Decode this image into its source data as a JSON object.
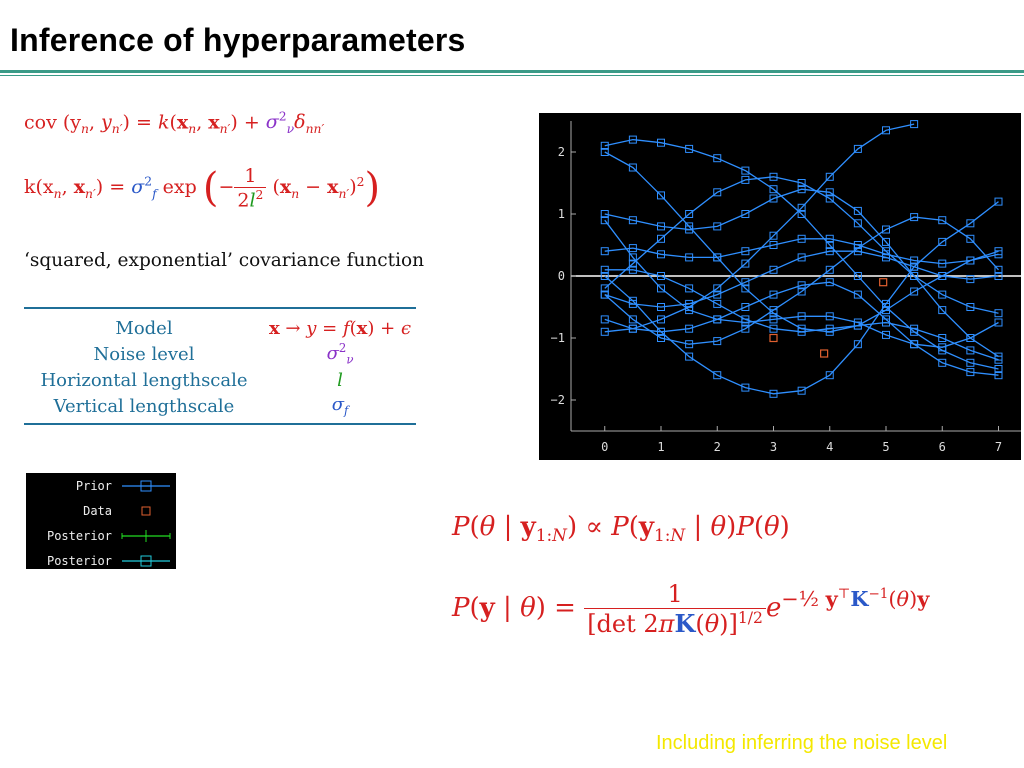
{
  "slide": {
    "title": "Inference of hyperparameters",
    "footer": "Including inferring the noise level"
  },
  "equations": {
    "cov_lhs": "cov (y",
    "k_def_prefix": "k(x",
    "caption": "‘squared, exponential’ covariance function",
    "posterior_theta": "P(θ | y1:N) ∝ P(y1:N | θ)P(θ)",
    "likelihood": "P(y | θ) = 1 / [det 2πK(θ)]^(1/2) e^(−½ yᵀK⁻¹(θ)y)"
  },
  "param_table": {
    "rows": [
      {
        "label": "Model",
        "value": "x → y = f(x) + ϵ",
        "color": "#d62020"
      },
      {
        "label": "Noise level",
        "value": "σν²",
        "color": "#8a32c8"
      },
      {
        "label": "Horizontal lengthscale",
        "value": "l",
        "color": "#1f9a1f"
      },
      {
        "label": "Vertical lengthscale",
        "value": "σf",
        "color": "#2a58c8"
      }
    ]
  },
  "legend": {
    "items": [
      {
        "label": "Prior",
        "marker": "blue-square-line"
      },
      {
        "label": "Data",
        "marker": "red-square"
      },
      {
        "label": "Posterior",
        "marker": "green-cross-line"
      },
      {
        "label": "Posterior",
        "marker": "cyan-square-line"
      }
    ]
  },
  "colors": {
    "accent_rule": "#3a9a87",
    "prior_line": "#2f8fff",
    "data_marker": "#e06030",
    "footer": "#f4e800"
  },
  "chart_data": {
    "type": "line",
    "xlim": [
      -0.6,
      7.4
    ],
    "ylim": [
      -2.5,
      2.5
    ],
    "xticks": [
      0,
      1,
      2,
      3,
      4,
      5,
      6,
      7
    ],
    "yticks": [
      -2,
      -1,
      0,
      1,
      2
    ],
    "grid": false,
    "data_points": [
      {
        "x": 3.0,
        "y": -1.0
      },
      {
        "x": 3.9,
        "y": -1.25
      },
      {
        "x": 4.95,
        "y": -0.1
      }
    ],
    "prior_samples": [
      {
        "x": [
          0,
          0.5,
          1,
          1.5,
          2,
          2.5,
          3,
          3.5,
          4,
          4.5,
          5,
          5.5,
          6,
          6.5,
          7
        ],
        "y": [
          2.1,
          2.2,
          2.15,
          2.05,
          1.9,
          1.7,
          1.4,
          1.0,
          0.5,
          0.0,
          -0.5,
          -0.9,
          -1.2,
          -1.4,
          -1.5
        ]
      },
      {
        "x": [
          0,
          0.5,
          1,
          1.5,
          2,
          2.5,
          3,
          3.5,
          4,
          4.5,
          5,
          5.5,
          6,
          6.5,
          7
        ],
        "y": [
          2.0,
          1.75,
          1.3,
          0.8,
          0.3,
          -0.2,
          -0.6,
          -0.85,
          -0.9,
          -0.8,
          -0.55,
          -0.25,
          0.0,
          0.25,
          0.4
        ]
      },
      {
        "x": [
          0,
          0.5,
          1,
          1.5,
          2,
          2.5,
          3,
          3.5,
          4,
          4.5,
          5,
          5.5,
          6,
          6.5,
          7
        ],
        "y": [
          0.0,
          -0.4,
          -0.9,
          -1.3,
          -1.6,
          -1.8,
          -1.9,
          -1.85,
          -1.6,
          -1.1,
          -0.45,
          0.15,
          0.55,
          0.85,
          1.2
        ]
      },
      {
        "x": [
          0,
          0.5,
          1,
          1.5,
          2,
          2.5,
          3,
          3.5,
          4,
          4.5,
          5,
          5.5,
          6,
          6.5,
          7
        ],
        "y": [
          -0.3,
          -0.45,
          -0.5,
          -0.45,
          -0.3,
          -0.1,
          0.1,
          0.3,
          0.4,
          0.4,
          0.3,
          0.15,
          0.0,
          -0.05,
          0.0
        ]
      },
      {
        "x": [
          0,
          0.5,
          1,
          1.5,
          2,
          2.5,
          3,
          3.5,
          4,
          4.5,
          5,
          5.5,
          6,
          6.5,
          7
        ],
        "y": [
          1.0,
          0.9,
          0.8,
          0.75,
          0.8,
          1.0,
          1.25,
          1.4,
          1.35,
          1.05,
          0.55,
          0.0,
          -0.55,
          -1.0,
          -1.3
        ]
      },
      {
        "x": [
          0,
          0.5,
          1,
          1.5,
          2,
          2.5,
          3,
          3.5,
          4,
          4.5,
          5,
          5.5,
          6,
          6.5,
          7
        ],
        "y": [
          0.9,
          0.3,
          -0.2,
          -0.55,
          -0.7,
          -0.75,
          -0.7,
          -0.65,
          -0.65,
          -0.75,
          -0.95,
          -1.1,
          -1.15,
          -1.0,
          -0.75
        ]
      },
      {
        "x": [
          0,
          0.5,
          1,
          1.5,
          2,
          2.5,
          3,
          3.5,
          4,
          4.5,
          5,
          5.5,
          6,
          6.5,
          7
        ],
        "y": [
          0.4,
          0.45,
          0.35,
          0.3,
          0.3,
          0.4,
          0.5,
          0.6,
          0.6,
          0.5,
          0.35,
          0.25,
          0.2,
          0.25,
          0.35
        ]
      },
      {
        "x": [
          0,
          0.5,
          1,
          1.5,
          2,
          2.5,
          3,
          3.5,
          4,
          4.5,
          5,
          5.5,
          6,
          6.5,
          7
        ],
        "y": [
          -0.7,
          -0.85,
          -0.9,
          -0.85,
          -0.7,
          -0.5,
          -0.3,
          -0.15,
          -0.1,
          -0.3,
          -0.7,
          -1.1,
          -1.4,
          -1.55,
          -1.6
        ]
      },
      {
        "x": [
          0,
          0.5,
          1,
          1.5,
          2,
          2.5,
          3,
          3.5,
          4,
          4.5,
          5,
          5.5,
          6,
          6.5,
          7
        ],
        "y": [
          -0.2,
          0.2,
          0.6,
          1.0,
          1.35,
          1.55,
          1.6,
          1.5,
          1.25,
          0.85,
          0.4,
          0.0,
          -0.3,
          -0.5,
          -0.6
        ]
      },
      {
        "x": [
          0,
          0.5,
          1,
          1.5,
          2,
          2.5,
          3,
          3.5,
          4,
          4.5,
          5,
          5.5,
          6,
          6.5,
          7
        ],
        "y": [
          -0.3,
          -0.7,
          -1.0,
          -1.1,
          -1.05,
          -0.85,
          -0.55,
          -0.25,
          0.1,
          0.45,
          0.75,
          0.95,
          0.9,
          0.6,
          0.1
        ]
      },
      {
        "x": [
          0,
          0.5,
          1,
          1.5,
          2,
          2.5,
          3,
          3.5,
          4,
          4.5,
          5,
          5.5,
          6,
          6.5,
          7
        ],
        "y": [
          0.1,
          0.1,
          0.0,
          -0.2,
          -0.45,
          -0.7,
          -0.85,
          -0.9,
          -0.85,
          -0.8,
          -0.75,
          -0.85,
          -1.0,
          -1.2,
          -1.35
        ]
      },
      {
        "x": [
          0,
          0.5,
          1,
          1.5,
          2,
          2.5,
          3,
          3.5,
          4,
          4.5,
          5,
          5.5
        ],
        "y": [
          -0.9,
          -0.85,
          -0.7,
          -0.5,
          -0.2,
          0.2,
          0.65,
          1.1,
          1.6,
          2.05,
          2.35,
          2.45
        ]
      }
    ]
  }
}
